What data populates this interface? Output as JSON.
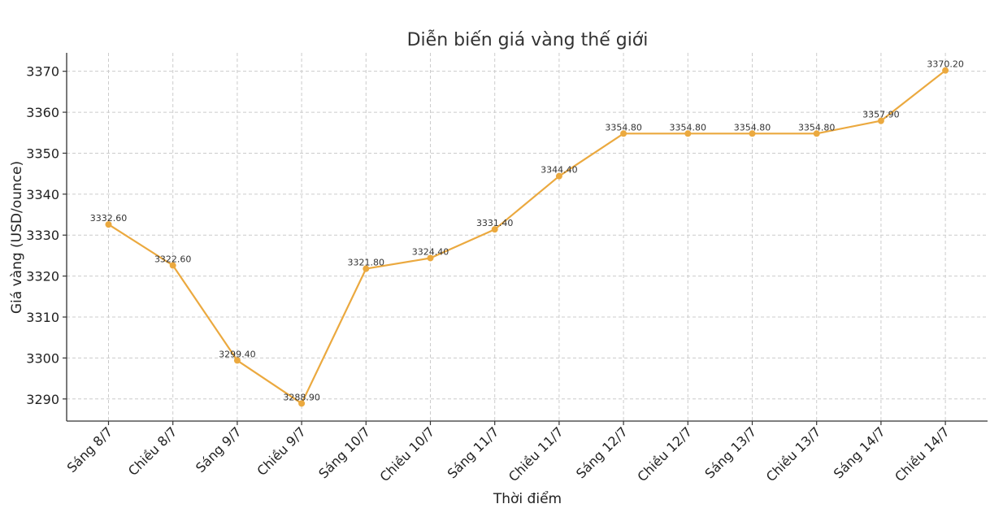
{
  "chart_data": {
    "type": "line",
    "title": "Diễn biến giá vàng thế giới",
    "xlabel": "Thời điểm",
    "ylabel": "Giá vàng (USD/ounce)",
    "categories": [
      "Sáng 8/7",
      "Chiều 8/7",
      "Sáng 9/7",
      "Chiều 9/7",
      "Sáng 10/7",
      "Chiều 10/7",
      "Sáng 11/7",
      "Chiều 11/7",
      "Sáng 12/7",
      "Chiều 12/7",
      "Sáng 13/7",
      "Chiều 13/7",
      "Sáng 14/7",
      "Chiều 14/7"
    ],
    "values": [
      3332.6,
      3322.6,
      3299.4,
      3288.9,
      3321.8,
      3324.4,
      3331.4,
      3344.4,
      3354.8,
      3354.8,
      3354.8,
      3354.8,
      3357.9,
      3370.2
    ],
    "data_labels": [
      "3332.60",
      "3322.60",
      "3299.40",
      "3288.90",
      "3321.80",
      "3324.40",
      "3331.40",
      "3344.40",
      "3354.80",
      "3354.80",
      "3354.80",
      "3354.80",
      "3357.90",
      "3370.20"
    ],
    "yticks": [
      3290,
      3300,
      3310,
      3320,
      3330,
      3340,
      3350,
      3360,
      3370
    ],
    "ylim": [
      3284.6,
      3374.5
    ],
    "grid": true,
    "color": "#EBA93F"
  }
}
